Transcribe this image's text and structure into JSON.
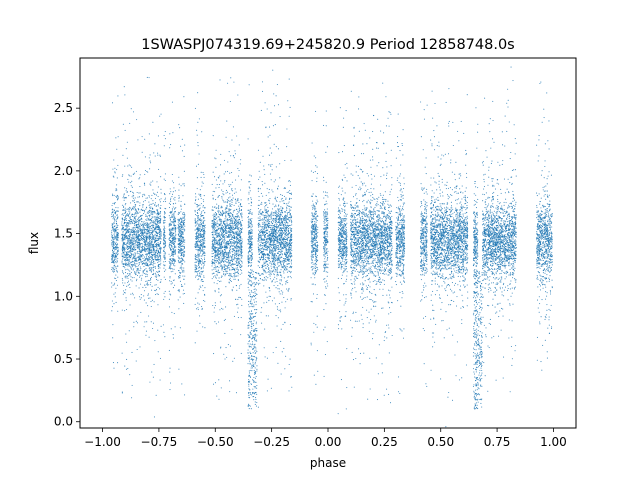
{
  "chart_data": {
    "type": "scatter",
    "title": "1SWASPJ074319.69+245820.9 Period 12858748.0s",
    "xlabel": "phase",
    "ylabel": "flux",
    "xlim": [
      -1.1,
      1.1
    ],
    "ylim": [
      -0.05,
      2.9
    ],
    "x_ticks": [
      -1.0,
      -0.75,
      -0.5,
      -0.25,
      0.0,
      0.25,
      0.5,
      0.75,
      1.0
    ],
    "x_tick_labels": [
      "−1.00",
      "−0.75",
      "−0.50",
      "−0.25",
      "0.00",
      "0.25",
      "0.50",
      "0.75",
      "1.00"
    ],
    "y_ticks": [
      0.0,
      0.5,
      1.0,
      1.5,
      2.0,
      2.5
    ],
    "y_tick_labels": [
      "0.0",
      "0.5",
      "1.0",
      "1.5",
      "2.0",
      "2.5"
    ],
    "grid": false,
    "marker_color": "#1f77b4",
    "series": [
      {
        "phase_clusters": [
          [
            -0.96,
            -0.93
          ],
          [
            -0.915,
            -0.86
          ],
          [
            -0.86,
            -0.74
          ],
          [
            -0.73,
            -0.72
          ],
          [
            -0.705,
            -0.675
          ],
          [
            -0.665,
            -0.635
          ],
          [
            -0.59,
            -0.545
          ],
          [
            -0.515,
            -0.43
          ],
          [
            -0.43,
            -0.38
          ],
          [
            -0.355,
            -0.335
          ],
          [
            -0.31,
            -0.16
          ],
          [
            -0.075,
            -0.045
          ],
          [
            -0.02,
            0.0
          ],
          [
            0.045,
            0.085
          ],
          [
            0.1,
            0.16
          ],
          [
            0.16,
            0.285
          ],
          [
            0.3,
            0.34
          ],
          [
            0.41,
            0.44
          ],
          [
            0.455,
            0.545
          ],
          [
            0.545,
            0.62
          ],
          [
            0.645,
            0.665
          ],
          [
            0.685,
            0.835
          ],
          [
            0.925,
            0.995
          ]
        ],
        "flux_median": 1.45,
        "flux_spread": 0.15,
        "dips": [
          {
            "phase": [
              -0.355,
              -0.315
            ],
            "flux_min": 0.1
          },
          {
            "phase": [
              0.645,
              0.685
            ],
            "flux_min": 0.1
          }
        ]
      }
    ]
  }
}
